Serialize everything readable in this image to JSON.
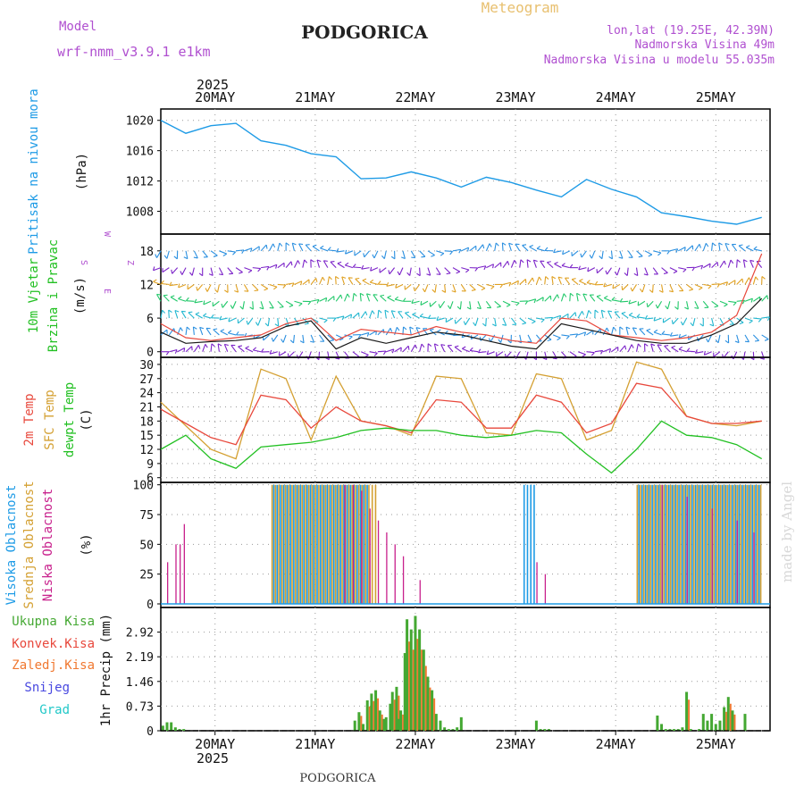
{
  "header": {
    "model_label": "Model",
    "model_name": "wrf-nmm_v3.9.1 e1km",
    "station": "PODGORICA",
    "product": "Meteogram",
    "coords": "lon,lat (19.25E, 42.39N)",
    "elevation": "Nadmorska Visina 49m",
    "model_elevation": "Nadmorska Visina u modelu 55.035m",
    "year": "2025",
    "footer_station": "PODGORICA",
    "watermark": "made by Angel"
  },
  "colors": {
    "pressure": "#1e9be6",
    "wind_speed": "#1a1a1a",
    "gust": "#e8483c",
    "wind_barbs": [
      "#7b22c8",
      "#2a8fe0",
      "#22b7d0",
      "#22c86a",
      "#e0a020"
    ],
    "temp_2m": "#e8483c",
    "temp_sfc": "#d4a032",
    "dewpoint": "#22c022",
    "cloud_high": "#1e9be6",
    "cloud_mid": "#d4a032",
    "cloud_low": "#c8208c",
    "precip_total": "#44a832",
    "precip_conv": "#e8483c",
    "precip_strat": "#f07830",
    "snow": "#4848e0",
    "graupel": "#22c8c8"
  },
  "chart_data": [
    {
      "type": "line",
      "panel": "pressure",
      "ylabel_lines": [
        "Pritisak na nivou mora",
        "(hPa)"
      ],
      "ylim": [
        1005,
        1021.5
      ],
      "yticks": [
        1008,
        1012,
        1016,
        1020
      ],
      "x_days": [
        "20MAY",
        "21MAY",
        "22MAY",
        "23MAY",
        "24MAY",
        "25MAY"
      ],
      "series": [
        {
          "hours": [
            0,
            6,
            12,
            18,
            24,
            30,
            36,
            42,
            48,
            54,
            60,
            66,
            72,
            78,
            84,
            90,
            96,
            102,
            108,
            114,
            120,
            126,
            132,
            138,
            144
          ],
          "values": [
            1020.0,
            1018.3,
            1019.3,
            1019.6,
            1017.3,
            1016.7,
            1015.6,
            1015.2,
            1012.3,
            1012.4,
            1013.2,
            1012.4,
            1011.2,
            1012.5,
            1011.8,
            1010.8,
            1009.9,
            1012.2,
            1010.9,
            1009.9,
            1007.8,
            1007.3,
            1006.7,
            1006.3,
            1007.2
          ]
        }
      ],
      "grid": true
    },
    {
      "type": "line",
      "panel": "wind",
      "ylabel_lines": [
        "10m Vjetar",
        "Brzina i Pravac",
        "(m/s)"
      ],
      "compass": [
        "Z",
        "W",
        "E",
        "S"
      ],
      "ylim": [
        -1,
        21
      ],
      "yticks": [
        0,
        6,
        12,
        18
      ],
      "series": [
        {
          "name": "speed",
          "hours": [
            0,
            6,
            12,
            18,
            24,
            30,
            36,
            42,
            48,
            54,
            60,
            66,
            72,
            78,
            84,
            90,
            96,
            102,
            108,
            114,
            120,
            126,
            132,
            138,
            144
          ],
          "values": [
            3.5,
            1.5,
            1.8,
            2.0,
            2.5,
            4.5,
            5.5,
            0.5,
            2.5,
            1.5,
            2.5,
            3.5,
            3.0,
            2.0,
            1.0,
            0.5,
            5.0,
            4.0,
            3.0,
            2.0,
            1.5,
            1.5,
            3.0,
            5.0,
            9.5
          ]
        },
        {
          "name": "gust",
          "hours": [
            0,
            6,
            12,
            18,
            24,
            30,
            36,
            42,
            48,
            54,
            60,
            66,
            72,
            78,
            84,
            90,
            96,
            102,
            108,
            114,
            120,
            126,
            132,
            138,
            144
          ],
          "values": [
            5.0,
            2.5,
            2.0,
            2.5,
            3.0,
            5.0,
            6.0,
            2.0,
            4.0,
            3.5,
            3.0,
            4.5,
            3.5,
            3.0,
            2.0,
            1.5,
            6.0,
            5.5,
            3.0,
            2.5,
            2.0,
            2.5,
            3.5,
            6.5,
            17.5
          ]
        }
      ],
      "barb_rows": [
        0,
        3,
        6,
        9,
        12,
        15,
        18
      ],
      "grid": true
    },
    {
      "type": "line",
      "panel": "temperature",
      "ylabel_lines": [
        "2m Temp",
        "SFC Temp",
        "dewpt Temp",
        "(C)"
      ],
      "ylim": [
        5,
        31.5
      ],
      "yticks": [
        6,
        9,
        12,
        15,
        18,
        21,
        24,
        27,
        30
      ],
      "series": [
        {
          "name": "2m Temp",
          "hours": [
            0,
            6,
            12,
            18,
            24,
            30,
            36,
            42,
            48,
            54,
            60,
            66,
            72,
            78,
            84,
            90,
            96,
            102,
            108,
            114,
            120,
            126,
            132,
            138,
            144
          ],
          "values": [
            20.5,
            17.5,
            14.5,
            13.0,
            23.5,
            22.5,
            16.5,
            21.0,
            18.0,
            17.0,
            15.5,
            22.5,
            22.0,
            16.5,
            16.5,
            23.5,
            22.0,
            15.5,
            17.5,
            26.0,
            25.0,
            19.0,
            17.5,
            17.5,
            18.0
          ]
        },
        {
          "name": "SFC Temp",
          "hours": [
            0,
            6,
            12,
            18,
            24,
            30,
            36,
            42,
            48,
            54,
            60,
            66,
            72,
            78,
            84,
            90,
            96,
            102,
            108,
            114,
            120,
            126,
            132,
            138,
            144
          ],
          "values": [
            22.0,
            17.0,
            12.0,
            10.0,
            29.0,
            27.0,
            14.0,
            27.5,
            18.0,
            17.0,
            15.0,
            27.5,
            27.0,
            15.5,
            15.0,
            28.0,
            27.0,
            14.0,
            16.0,
            30.5,
            29.0,
            19.0,
            17.5,
            17.0,
            18.0
          ]
        },
        {
          "name": "dewpt Temp",
          "hours": [
            0,
            6,
            12,
            18,
            24,
            30,
            36,
            42,
            48,
            54,
            60,
            66,
            72,
            78,
            84,
            90,
            96,
            102,
            108,
            114,
            120,
            126,
            132,
            138,
            144
          ],
          "values": [
            12.0,
            15.0,
            10.0,
            8.0,
            12.5,
            13.0,
            13.5,
            14.5,
            16.0,
            16.5,
            16.0,
            16.0,
            15.0,
            14.5,
            15.0,
            16.0,
            15.5,
            11.0,
            7.0,
            12.0,
            18.0,
            15.0,
            14.5,
            13.0,
            10.0
          ]
        }
      ],
      "grid": true
    },
    {
      "type": "bar",
      "panel": "clouds",
      "ylabel_lines": [
        "Visoka Oblacnost",
        "Srednja Oblacnost",
        "Niska Oblacnost",
        "(%)"
      ],
      "ylim": [
        -3,
        102
      ],
      "yticks": [
        0,
        25,
        50,
        75,
        100
      ],
      "series": [
        {
          "name": "Visoka Oblacnost",
          "ranges": [
            [
              26.5,
              49.5,
              100
            ],
            [
              86.5,
              90,
              100
            ],
            [
              114,
              144,
              100
            ]
          ]
        },
        {
          "name": "Srednja Oblacnost",
          "ranges": [
            [
              26.5,
              52,
              100
            ],
            [
              114,
              144,
              100
            ]
          ]
        },
        {
          "name": "Niska Oblacnost",
          "spikes": [
            [
              1.5,
              35
            ],
            [
              3.5,
              50
            ],
            [
              4.5,
              50
            ],
            [
              5.5,
              67
            ],
            [
              44,
              100
            ],
            [
              46,
              100
            ],
            [
              48,
              95
            ],
            [
              50,
              80
            ],
            [
              52,
              70
            ],
            [
              54,
              60
            ],
            [
              56,
              50
            ],
            [
              58,
              40
            ],
            [
              62,
              20
            ],
            [
              90,
              35
            ],
            [
              92,
              25
            ],
            [
              120,
              100
            ],
            [
              126,
              90
            ],
            [
              132,
              80
            ],
            [
              138,
              70
            ],
            [
              142,
              60
            ]
          ]
        }
      ],
      "grid": true
    },
    {
      "type": "bar",
      "panel": "precip",
      "ylabel_lines": [
        "1hr Precip (mm)"
      ],
      "legend": [
        "Ukupna Kisa",
        "Konvek.Kisa",
        "Zaledj.Kisa",
        "Snijeg",
        "Grad"
      ],
      "ylim": [
        0,
        3.65
      ],
      "yticks": [
        0,
        0.73,
        1.46,
        2.19,
        2.92
      ],
      "hours": [
        0.5,
        1.5,
        2.5,
        3.5,
        4.5,
        5.5,
        46.5,
        47.5,
        48.5,
        49.5,
        50.5,
        51.5,
        52.5,
        53.5,
        54,
        55,
        55.5,
        56.5,
        57,
        57.5,
        58.5,
        59,
        60,
        61,
        62,
        63,
        64,
        65,
        66,
        67,
        68,
        69,
        70,
        71,
        72,
        90,
        91,
        92,
        93,
        119,
        120,
        121,
        122,
        123,
        124,
        125,
        126,
        127,
        129,
        130,
        131,
        132,
        133,
        134,
        135,
        136,
        137,
        140
      ],
      "values": [
        0.15,
        0.25,
        0.25,
        0.1,
        0.05,
        0.05,
        0.3,
        0.55,
        0.2,
        0.9,
        1.1,
        1.2,
        0.6,
        0.35,
        0.4,
        0.8,
        1.15,
        1.3,
        0.35,
        0.6,
        2.3,
        3.3,
        3.0,
        3.4,
        3.0,
        2.4,
        1.6,
        1.2,
        0.5,
        0.3,
        0.1,
        0.05,
        0.05,
        0.1,
        0.4,
        0.3,
        0.05,
        0.05,
        0.05,
        0.45,
        0.2,
        0.05,
        0.05,
        0.05,
        0.05,
        0.1,
        1.15,
        0.05,
        0.05,
        0.5,
        0.3,
        0.5,
        0.2,
        0.3,
        0.7,
        1.0,
        0.6,
        0.5
      ],
      "xtick_labels": [
        "20MAY",
        "21MAY",
        "22MAY",
        "23MAY",
        "24MAY",
        "25MAY"
      ],
      "grid": true
    }
  ]
}
